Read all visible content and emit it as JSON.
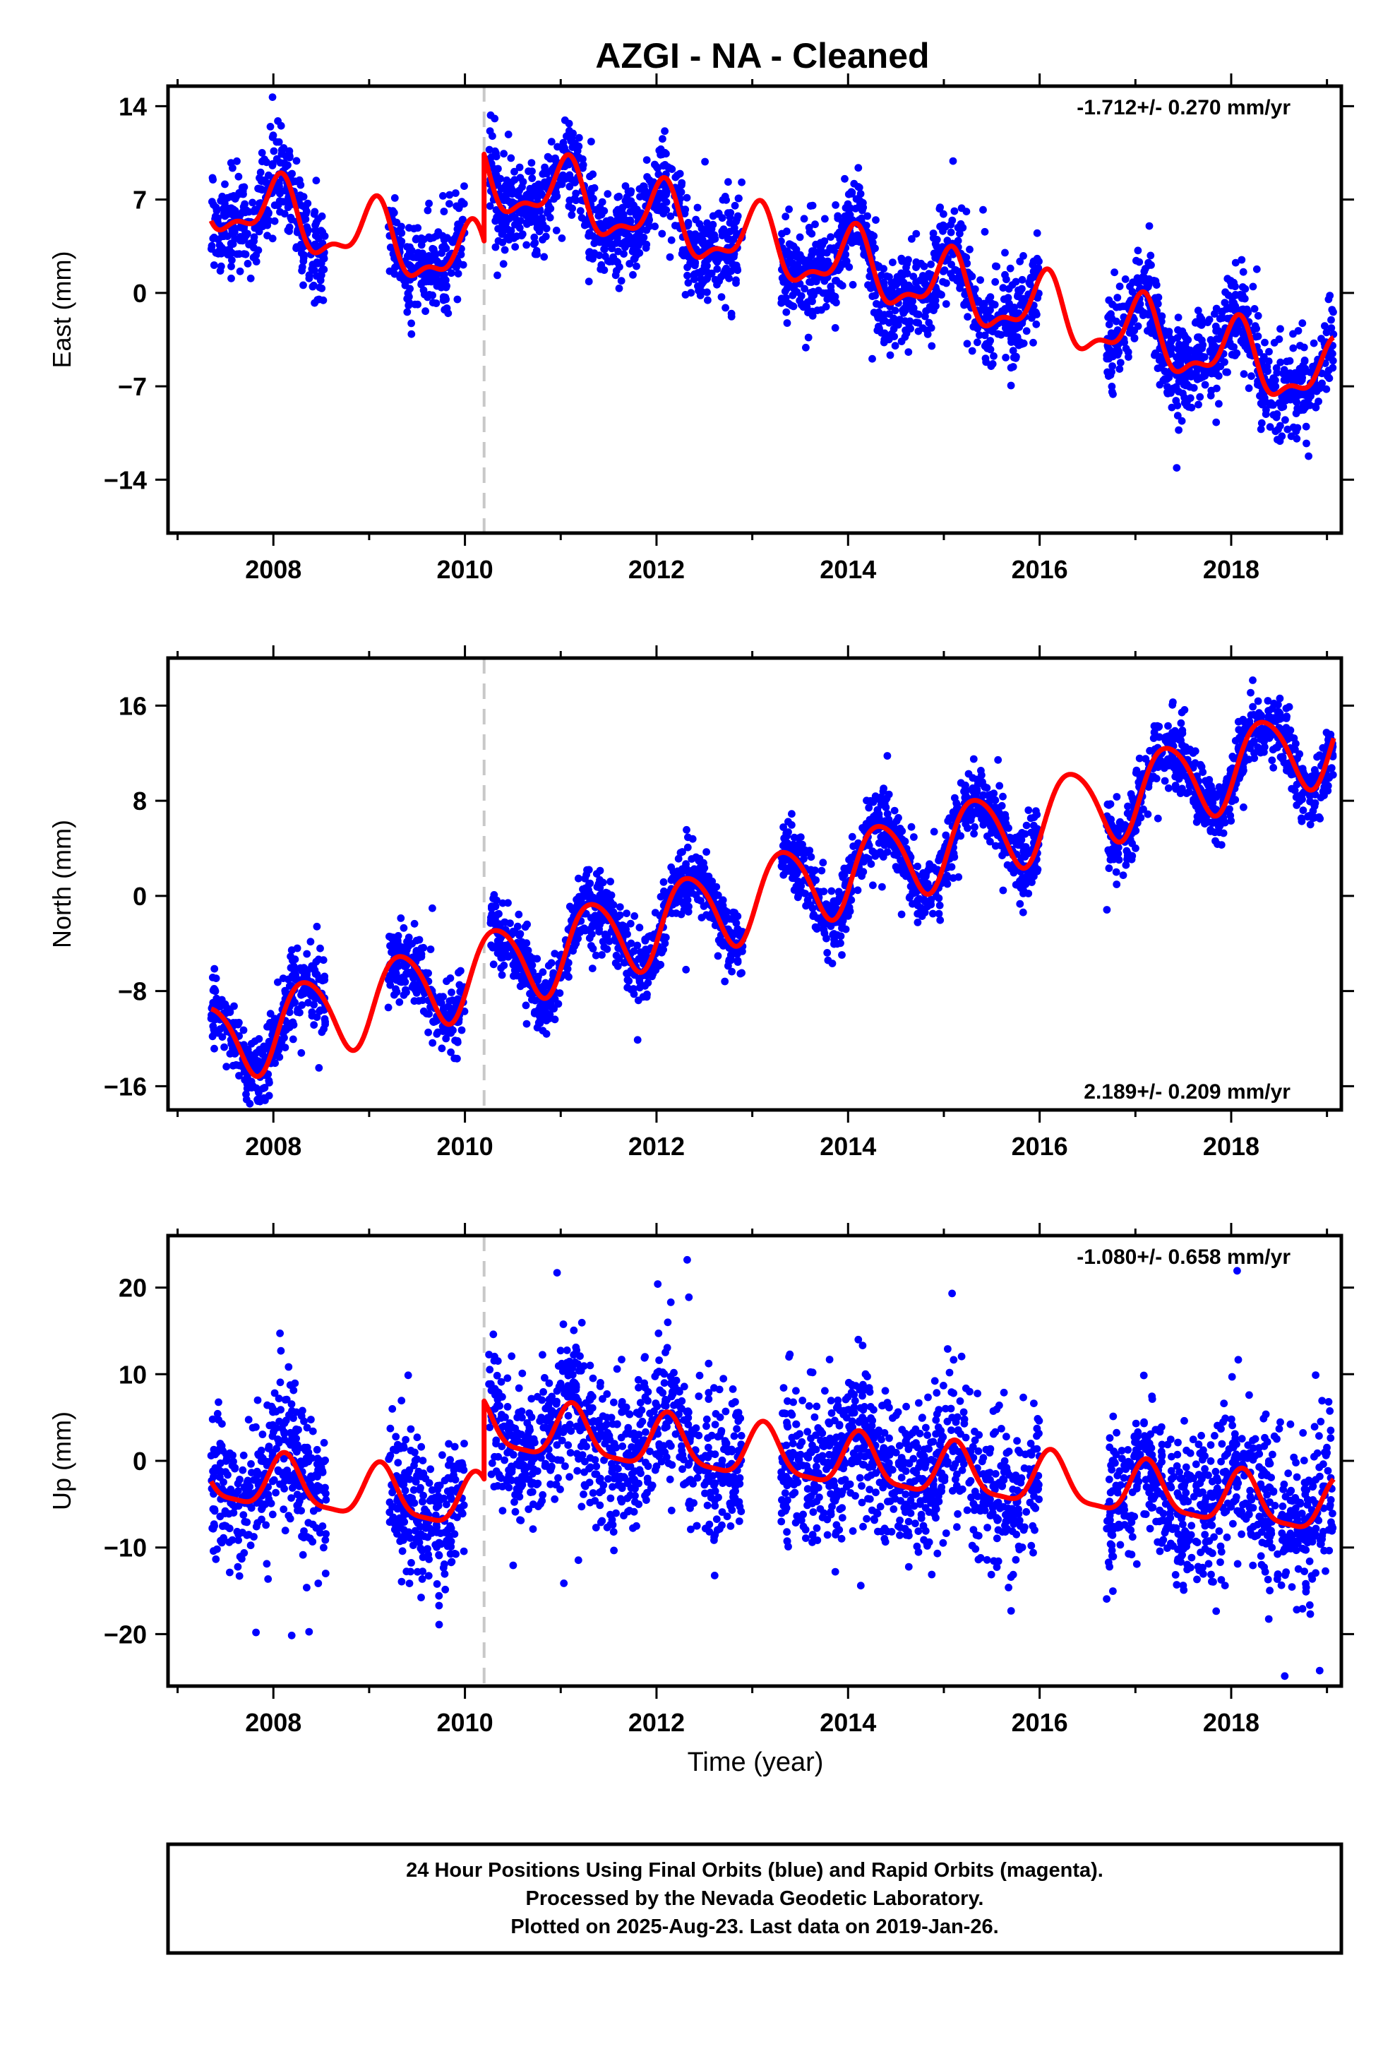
{
  "title": "AZGI  - NA - Cleaned",
  "x_axis_label": "Time (year)",
  "footer": [
    "24 Hour Positions Using Final Orbits (blue) and Rapid Orbits (magenta).",
    "Processed by the Nevada Geodetic Laboratory.",
    "Plotted on 2025-Aug-23. Last data on 2019-Jan-26."
  ],
  "colors": {
    "final_orbits": "#0000ff",
    "rapid_orbits": "#ff00ff",
    "model": "#ff0000",
    "equipment_change": "#c8c8c8"
  },
  "chart_data": [
    {
      "type": "scatter",
      "ylabel": "East (mm)",
      "rate_label": "-1.712+/- 0.270 mm/yr",
      "rate_position": "top-right",
      "xlim": [
        2006.9,
        2019.15
      ],
      "ylim": [
        -18.0,
        15.5
      ],
      "x_ticks": [
        2008,
        2010,
        2012,
        2014,
        2016,
        2018
      ],
      "y_ticks": [
        14,
        7,
        0,
        -7,
        -14
      ],
      "y_tick_labels": [
        "14",
        "7",
        "0",
        "−7",
        "−14"
      ],
      "equipment_change": 2010.2,
      "data_intervals": [
        [
          2007.35,
          2008.55
        ],
        [
          2009.2,
          2010.0
        ],
        [
          2010.25,
          2012.9
        ],
        [
          2013.3,
          2016.0
        ],
        [
          2016.7,
          2019.07
        ]
      ],
      "model": {
        "offset": 7.0,
        "trend": -1.712,
        "t0": 2007.35,
        "annual_amp": 2.3,
        "annual_phase": 1.2,
        "semiannual_amp": 1.0,
        "semiannual_phase": 0.3,
        "steps": [
          {
            "t": 2010.2,
            "dy": 6.5
          }
        ]
      },
      "scatter_sigma": 1.7,
      "points": 2900
    },
    {
      "type": "scatter",
      "ylabel": "North (mm)",
      "rate_label": "2.189+/- 0.209 mm/yr",
      "rate_position": "bottom-right",
      "xlim": [
        2006.9,
        2019.15
      ],
      "ylim": [
        -18.0,
        20.0
      ],
      "x_ticks": [
        2008,
        2010,
        2012,
        2014,
        2016,
        2018
      ],
      "y_ticks": [
        16,
        8,
        0,
        -8,
        -16
      ],
      "y_tick_labels": [
        "16",
        "8",
        "0",
        "−8",
        "−16"
      ],
      "equipment_change": 2010.2,
      "data_intervals": [
        [
          2007.35,
          2008.55
        ],
        [
          2009.2,
          2010.0
        ],
        [
          2010.25,
          2012.9
        ],
        [
          2013.3,
          2016.0
        ],
        [
          2016.7,
          2019.07
        ]
      ],
      "model": {
        "offset": -12.5,
        "trend": 2.189,
        "t0": 2007.35,
        "annual_amp": 3.4,
        "annual_phase": -0.5,
        "semiannual_amp": 0.4,
        "semiannual_phase": 0.0,
        "steps": []
      },
      "scatter_sigma": 1.4,
      "points": 2900
    },
    {
      "type": "scatter",
      "ylabel": "Up (mm)",
      "rate_label": "-1.080+/- 0.658 mm/yr",
      "rate_position": "top-right",
      "xlim": [
        2006.9,
        2019.15
      ],
      "ylim": [
        -26.0,
        26.0
      ],
      "x_ticks": [
        2008,
        2010,
        2012,
        2014,
        2016,
        2018
      ],
      "y_ticks": [
        20,
        10,
        0,
        -10,
        -20
      ],
      "y_tick_labels": [
        "20",
        "10",
        "0",
        "−10",
        "−20"
      ],
      "equipment_change": 2010.2,
      "data_intervals": [
        [
          2007.35,
          2008.55
        ],
        [
          2009.2,
          2010.0
        ],
        [
          2010.25,
          2012.9
        ],
        [
          2013.3,
          2016.0
        ],
        [
          2016.7,
          2019.07
        ]
      ],
      "model": {
        "offset": -2.0,
        "trend": -1.08,
        "t0": 2007.35,
        "annual_amp": 3.0,
        "annual_phase": 0.8,
        "semiannual_amp": 0.8,
        "semiannual_phase": 0.2,
        "steps": [
          {
            "t": 2010.2,
            "dy": 9.0
          }
        ]
      },
      "scatter_sigma": 4.2,
      "points": 2900
    }
  ]
}
